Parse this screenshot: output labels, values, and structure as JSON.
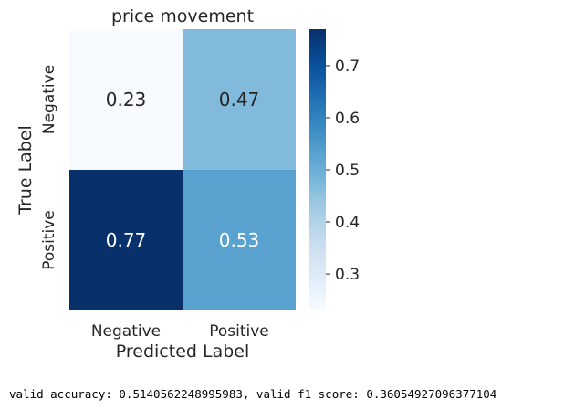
{
  "chart_data": {
    "type": "heatmap",
    "title": "price movement",
    "xlabel": "Predicted Label",
    "ylabel": "True Label",
    "x_categories": [
      "Negative",
      "Positive"
    ],
    "y_categories": [
      "Negative",
      "Positive"
    ],
    "values": [
      [
        0.23,
        0.47
      ],
      [
        0.77,
        0.53
      ]
    ],
    "value_labels": [
      [
        "0.23",
        "0.47"
      ],
      [
        "0.77",
        "0.53"
      ]
    ],
    "colormap": "Blues",
    "colorbar": {
      "vmin": 0.23,
      "vmax": 0.77,
      "ticks": [
        0.3,
        0.4,
        0.5,
        0.6,
        0.7
      ],
      "tick_labels": [
        "0.3",
        "0.4",
        "0.5",
        "0.6",
        "0.7"
      ]
    },
    "colors": {
      "light_text": "#ffffff",
      "dark_text": "#262626"
    }
  },
  "footer": {
    "text": "valid accuracy: 0.5140562248995983, valid f1 score: 0.36054927096377104"
  }
}
